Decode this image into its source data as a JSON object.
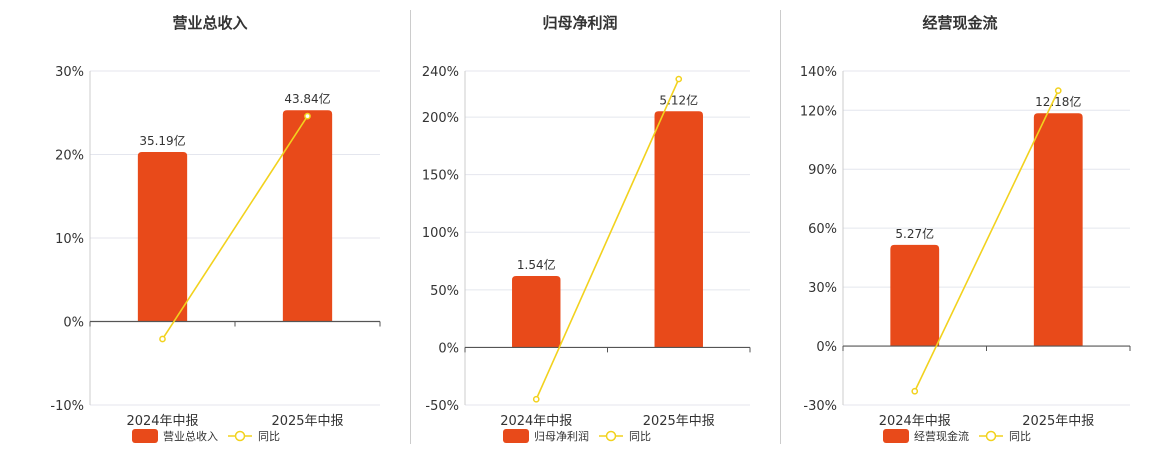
{
  "colors": {
    "bar": "#E84A1A",
    "line": "#F2D21E",
    "axis": "#555555",
    "grid": "#E4E6EE"
  },
  "legend_line_label": "同比",
  "chart_data": [
    {
      "type": "bar",
      "title": "营业总收入",
      "categories": [
        "2024年中报",
        "2025年中报"
      ],
      "series": [
        {
          "name": "营业总收入",
          "type": "bar",
          "values": [
            20.3,
            25.3
          ],
          "labels": [
            "35.19亿",
            "43.84亿"
          ]
        },
        {
          "name": "同比",
          "type": "line",
          "values": [
            -2.1,
            24.6
          ]
        }
      ],
      "yticks": [
        "30%",
        "20%",
        "10%",
        "0%",
        "-10%"
      ],
      "ylim": [
        -10,
        30
      ],
      "grid": true,
      "legend": "bottom"
    },
    {
      "type": "bar",
      "title": "归母净利润",
      "categories": [
        "2024年中报",
        "2025年中报"
      ],
      "series": [
        {
          "name": "归母净利润",
          "type": "bar",
          "values": [
            62,
            205
          ],
          "labels": [
            "1.54亿",
            "5.12亿"
          ]
        },
        {
          "name": "同比",
          "type": "line",
          "values": [
            -45,
            233
          ]
        }
      ],
      "yticks": [
        "240%",
        "200%",
        "150%",
        "100%",
        "50%",
        "0%",
        "-50%"
      ],
      "ylim": [
        -50,
        240
      ],
      "grid": true,
      "legend": "bottom"
    },
    {
      "type": "bar",
      "title": "经营现金流",
      "categories": [
        "2024年中报",
        "2025年中报"
      ],
      "series": [
        {
          "name": "经营现金流",
          "type": "bar",
          "values": [
            51.5,
            118.5
          ],
          "labels": [
            "5.27亿",
            "12.18亿"
          ]
        },
        {
          "name": "同比",
          "type": "line",
          "values": [
            -23,
            130
          ]
        }
      ],
      "yticks": [
        "140%",
        "120%",
        "90%",
        "60%",
        "30%",
        "0%",
        "-30%"
      ],
      "ylim": [
        -30,
        140
      ],
      "grid": true,
      "legend": "bottom"
    }
  ]
}
